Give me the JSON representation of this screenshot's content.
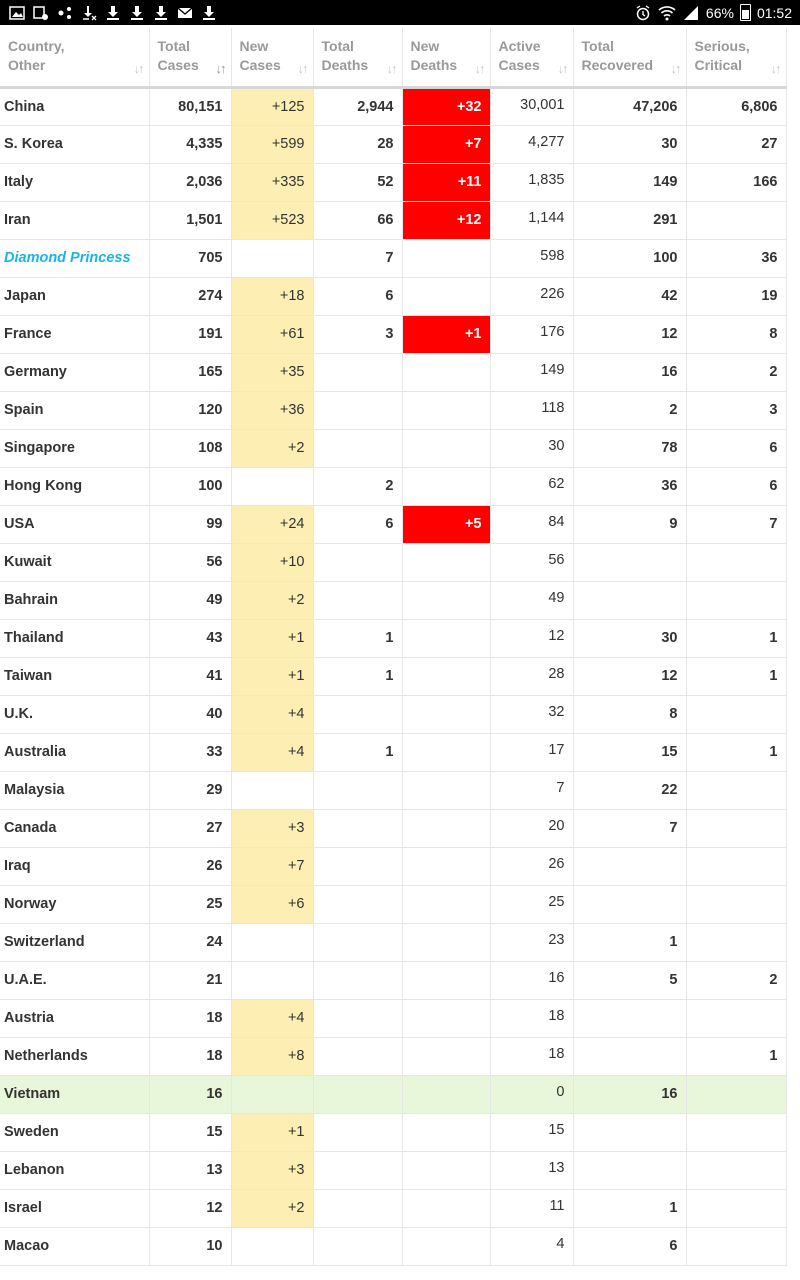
{
  "status_bar": {
    "battery": "66%",
    "time": "01:52",
    "left_icons": [
      "gallery-icon",
      "screenshot-icon",
      "share-icon",
      "download-done-icon",
      "download-icon",
      "download-icon",
      "download-icon",
      "mail-icon",
      "download-icon"
    ],
    "right_icons": [
      "alarm-icon",
      "wifi-icon",
      "signal-icon",
      "battery-icon"
    ]
  },
  "table": {
    "headers": [
      {
        "line1": "Country,",
        "line2": "Other"
      },
      {
        "line1": "Total",
        "line2": "Cases"
      },
      {
        "line1": "New",
        "line2": "Cases"
      },
      {
        "line1": "Total",
        "line2": "Deaths"
      },
      {
        "line1": "New",
        "line2": "Deaths"
      },
      {
        "line1": "Active",
        "line2": "Cases"
      },
      {
        "line1": "Total",
        "line2": "Recovered"
      },
      {
        "line1": "Serious,",
        "line2": "Critical"
      }
    ],
    "rows": [
      {
        "country": "China",
        "total_cases": "80,151",
        "new_cases": "+125",
        "total_deaths": "2,944",
        "new_deaths": "+32",
        "active": "30,001",
        "recovered": "47,206",
        "critical": "6,806"
      },
      {
        "country": "S. Korea",
        "total_cases": "4,335",
        "new_cases": "+599",
        "total_deaths": "28",
        "new_deaths": "+7",
        "active": "4,277",
        "recovered": "30",
        "critical": "27"
      },
      {
        "country": "Italy",
        "total_cases": "2,036",
        "new_cases": "+335",
        "total_deaths": "52",
        "new_deaths": "+11",
        "active": "1,835",
        "recovered": "149",
        "critical": "166"
      },
      {
        "country": "Iran",
        "total_cases": "1,501",
        "new_cases": "+523",
        "total_deaths": "66",
        "new_deaths": "+12",
        "active": "1,144",
        "recovered": "291",
        "critical": ""
      },
      {
        "country": "Diamond Princess",
        "special": true,
        "total_cases": "705",
        "new_cases": "",
        "total_deaths": "7",
        "new_deaths": "",
        "active": "598",
        "recovered": "100",
        "critical": "36"
      },
      {
        "country": "Japan",
        "total_cases": "274",
        "new_cases": "+18",
        "total_deaths": "6",
        "new_deaths": "",
        "active": "226",
        "recovered": "42",
        "critical": "19"
      },
      {
        "country": "France",
        "total_cases": "191",
        "new_cases": "+61",
        "total_deaths": "3",
        "new_deaths": "+1",
        "active": "176",
        "recovered": "12",
        "critical": "8"
      },
      {
        "country": "Germany",
        "total_cases": "165",
        "new_cases": "+35",
        "total_deaths": "",
        "new_deaths": "",
        "active": "149",
        "recovered": "16",
        "critical": "2"
      },
      {
        "country": "Spain",
        "total_cases": "120",
        "new_cases": "+36",
        "total_deaths": "",
        "new_deaths": "",
        "active": "118",
        "recovered": "2",
        "critical": "3"
      },
      {
        "country": "Singapore",
        "total_cases": "108",
        "new_cases": "+2",
        "total_deaths": "",
        "new_deaths": "",
        "active": "30",
        "recovered": "78",
        "critical": "6"
      },
      {
        "country": "Hong Kong",
        "total_cases": "100",
        "new_cases": "",
        "total_deaths": "2",
        "new_deaths": "",
        "active": "62",
        "recovered": "36",
        "critical": "6"
      },
      {
        "country": "USA",
        "total_cases": "99",
        "new_cases": "+24",
        "total_deaths": "6",
        "new_deaths": "+5",
        "active": "84",
        "recovered": "9",
        "critical": "7"
      },
      {
        "country": "Kuwait",
        "total_cases": "56",
        "new_cases": "+10",
        "total_deaths": "",
        "new_deaths": "",
        "active": "56",
        "recovered": "",
        "critical": ""
      },
      {
        "country": "Bahrain",
        "total_cases": "49",
        "new_cases": "+2",
        "total_deaths": "",
        "new_deaths": "",
        "active": "49",
        "recovered": "",
        "critical": ""
      },
      {
        "country": "Thailand",
        "total_cases": "43",
        "new_cases": "+1",
        "total_deaths": "1",
        "new_deaths": "",
        "active": "12",
        "recovered": "30",
        "critical": "1"
      },
      {
        "country": "Taiwan",
        "total_cases": "41",
        "new_cases": "+1",
        "total_deaths": "1",
        "new_deaths": "",
        "active": "28",
        "recovered": "12",
        "critical": "1"
      },
      {
        "country": "U.K.",
        "total_cases": "40",
        "new_cases": "+4",
        "total_deaths": "",
        "new_deaths": "",
        "active": "32",
        "recovered": "8",
        "critical": ""
      },
      {
        "country": "Australia",
        "total_cases": "33",
        "new_cases": "+4",
        "total_deaths": "1",
        "new_deaths": "",
        "active": "17",
        "recovered": "15",
        "critical": "1"
      },
      {
        "country": "Malaysia",
        "total_cases": "29",
        "new_cases": "",
        "total_deaths": "",
        "new_deaths": "",
        "active": "7",
        "recovered": "22",
        "critical": ""
      },
      {
        "country": "Canada",
        "total_cases": "27",
        "new_cases": "+3",
        "total_deaths": "",
        "new_deaths": "",
        "active": "20",
        "recovered": "7",
        "critical": ""
      },
      {
        "country": "Iraq",
        "total_cases": "26",
        "new_cases": "+7",
        "total_deaths": "",
        "new_deaths": "",
        "active": "26",
        "recovered": "",
        "critical": ""
      },
      {
        "country": "Norway",
        "total_cases": "25",
        "new_cases": "+6",
        "total_deaths": "",
        "new_deaths": "",
        "active": "25",
        "recovered": "",
        "critical": ""
      },
      {
        "country": "Switzerland",
        "total_cases": "24",
        "new_cases": "",
        "total_deaths": "",
        "new_deaths": "",
        "active": "23",
        "recovered": "1",
        "critical": ""
      },
      {
        "country": "U.A.E.",
        "total_cases": "21",
        "new_cases": "",
        "total_deaths": "",
        "new_deaths": "",
        "active": "16",
        "recovered": "5",
        "critical": "2"
      },
      {
        "country": "Austria",
        "total_cases": "18",
        "new_cases": "+4",
        "total_deaths": "",
        "new_deaths": "",
        "active": "18",
        "recovered": "",
        "critical": ""
      },
      {
        "country": "Netherlands",
        "total_cases": "18",
        "new_cases": "+8",
        "total_deaths": "",
        "new_deaths": "",
        "active": "18",
        "recovered": "",
        "critical": "1"
      },
      {
        "country": "Vietnam",
        "green": true,
        "total_cases": "16",
        "new_cases": "",
        "total_deaths": "",
        "new_deaths": "",
        "active": "0",
        "recovered": "16",
        "critical": ""
      },
      {
        "country": "Sweden",
        "total_cases": "15",
        "new_cases": "+1",
        "total_deaths": "",
        "new_deaths": "",
        "active": "15",
        "recovered": "",
        "critical": ""
      },
      {
        "country": "Lebanon",
        "total_cases": "13",
        "new_cases": "+3",
        "total_deaths": "",
        "new_deaths": "",
        "active": "13",
        "recovered": "",
        "critical": ""
      },
      {
        "country": "Israel",
        "total_cases": "12",
        "new_cases": "+2",
        "total_deaths": "",
        "new_deaths": "",
        "active": "11",
        "recovered": "1",
        "critical": ""
      },
      {
        "country": "Macao",
        "total_cases": "10",
        "new_cases": "",
        "total_deaths": "",
        "new_deaths": "",
        "active": "4",
        "recovered": "6",
        "critical": ""
      }
    ]
  },
  "colors": {
    "new_cases_highlight": "#fdeeb3",
    "new_deaths_highlight": "#ff0000",
    "special_row_text": "#1ab4e8",
    "recovered_row_bg": "#e8f7da"
  }
}
